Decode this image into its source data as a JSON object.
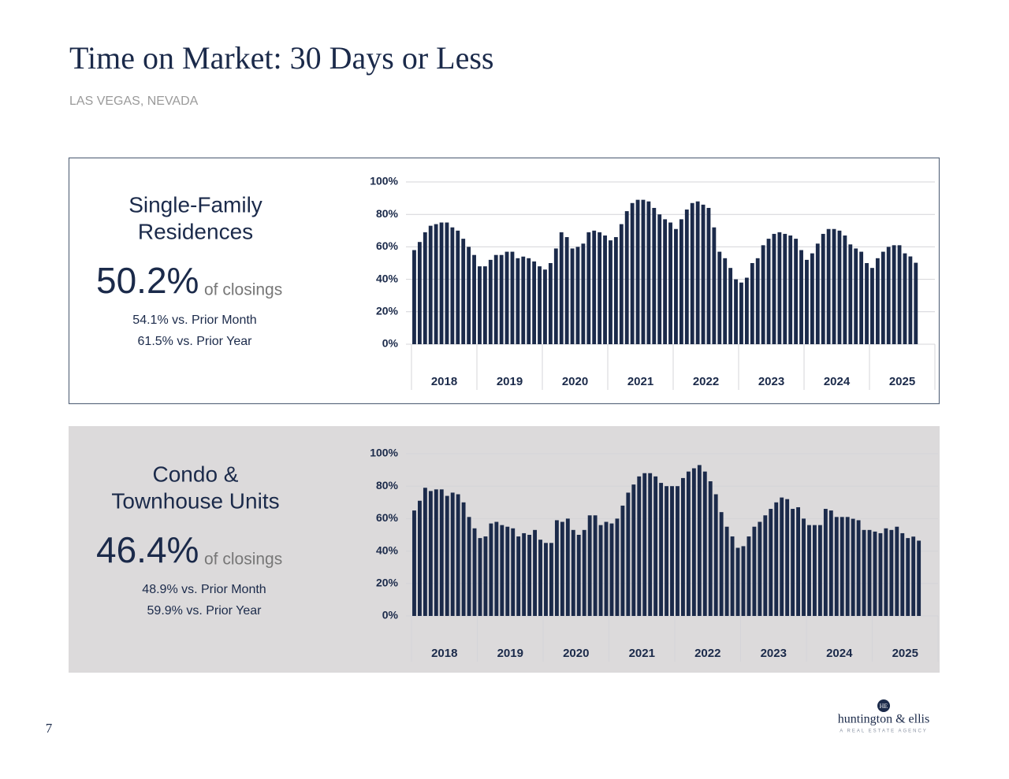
{
  "header": {
    "title": "Time on Market: 30 Days or Less",
    "subtitle": "LAS VEGAS, NEVADA"
  },
  "panels": [
    {
      "heading_lines": [
        "Single-Family",
        "Residences"
      ],
      "stat": "50.2%",
      "stat_label": "of closings",
      "comparisons": [
        "54.1% vs. Prior Month",
        "61.5% vs. Prior Year"
      ]
    },
    {
      "heading_lines": [
        "Condo &",
        "Townhouse Units"
      ],
      "stat": "46.4%",
      "stat_label": "of closings",
      "comparisons": [
        "48.9% vs. Prior Month",
        "59.9% vs. Prior Year"
      ]
    }
  ],
  "chart_data": [
    {
      "type": "bar",
      "color": "#1b2a4a",
      "grid": true,
      "groups": [
        "2018",
        "2019",
        "2020",
        "2021",
        "2022",
        "2023",
        "2024",
        "2025"
      ],
      "values": [
        58,
        63,
        69,
        73,
        74,
        75,
        75,
        72,
        70,
        65,
        60,
        55,
        48,
        48,
        52,
        55,
        55,
        57,
        57,
        53,
        54,
        53,
        51,
        48,
        46,
        50,
        59,
        69,
        66,
        59,
        60,
        62,
        69,
        70,
        69,
        67,
        64,
        66,
        74,
        82,
        87,
        89,
        89,
        88,
        84,
        80,
        77,
        75,
        71,
        77,
        83,
        87,
        88,
        86,
        84,
        72,
        57,
        53,
        47,
        40,
        38,
        41,
        50,
        53,
        61,
        65,
        68,
        69,
        68,
        67,
        65,
        58,
        52,
        56,
        62,
        68,
        71,
        71,
        70,
        67,
        61.5,
        59,
        57,
        50,
        47,
        53,
        57,
        60,
        61,
        61,
        56,
        54.1,
        50.2
      ],
      "ylim": [
        0,
        100
      ],
      "yticks": [
        {
          "value": 0,
          "label": "0%"
        },
        {
          "value": 20,
          "label": "20%"
        },
        {
          "value": 40,
          "label": "40%"
        },
        {
          "value": 60,
          "label": "60%"
        },
        {
          "value": 80,
          "label": "80%"
        },
        {
          "value": 100,
          "label": "100%"
        }
      ]
    },
    {
      "type": "bar",
      "color": "#1b2a4a",
      "grid": true,
      "groups": [
        "2018",
        "2019",
        "2020",
        "2021",
        "2022",
        "2023",
        "2024",
        "2025"
      ],
      "values": [
        65,
        71,
        79,
        77,
        78,
        78,
        74,
        76,
        75,
        70,
        61,
        54,
        48,
        49,
        57,
        58,
        56,
        55,
        54,
        49,
        51,
        50,
        53,
        47,
        45,
        45,
        59,
        58,
        60,
        53,
        50,
        53,
        62,
        62,
        56,
        58,
        57,
        60,
        68,
        76,
        81,
        86,
        88,
        88,
        86,
        82,
        80,
        80,
        80,
        85,
        89,
        91,
        93,
        89,
        83,
        75,
        64,
        55,
        49,
        42,
        43,
        49,
        55,
        58,
        62,
        66,
        70,
        73,
        72,
        66,
        67,
        60,
        56,
        56,
        56,
        66,
        65,
        61,
        61,
        61,
        59.9,
        59,
        53,
        53,
        52,
        51,
        54,
        53,
        55,
        51,
        48,
        48.9,
        46.4
      ],
      "ylim": [
        0,
        100
      ],
      "yticks": [
        {
          "value": 0,
          "label": "0%"
        },
        {
          "value": 20,
          "label": "20%"
        },
        {
          "value": 40,
          "label": "40%"
        },
        {
          "value": 60,
          "label": "60%"
        },
        {
          "value": 80,
          "label": "80%"
        },
        {
          "value": 100,
          "label": "100%"
        }
      ]
    }
  ],
  "footer": {
    "page_number": "7",
    "logo_monogram": "HE",
    "logo_name": "huntington & ellis",
    "logo_tagline": "A REAL ESTATE AGENCY"
  }
}
